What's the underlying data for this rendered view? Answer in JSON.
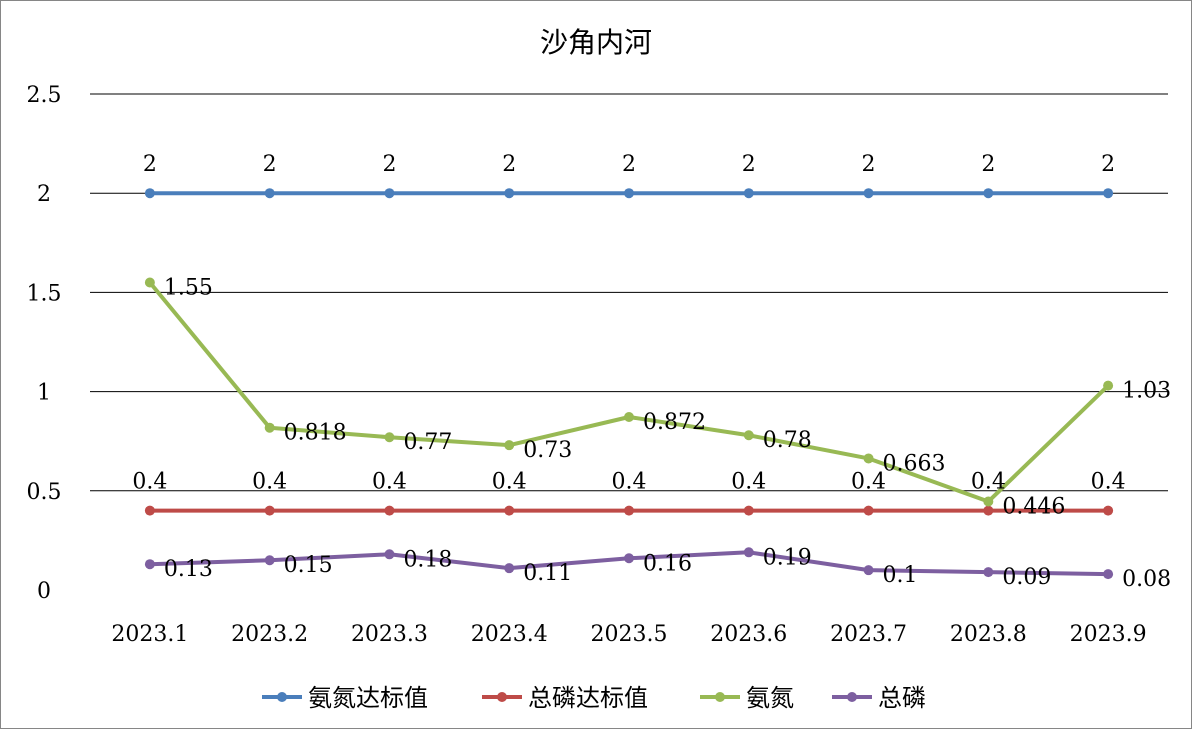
{
  "chart_data": {
    "type": "line",
    "title": "沙角内河",
    "categories": [
      "2023.1",
      "2023.2",
      "2023.3",
      "2023.4",
      "2023.5",
      "2023.6",
      "2023.7",
      "2023.8",
      "2023.9"
    ],
    "y_ticks": [
      "0",
      "0.5",
      "1",
      "1.5",
      "2",
      "2.5"
    ],
    "ylim": [
      0,
      2.5
    ],
    "grid": true,
    "legend_position": "bottom",
    "series": [
      {
        "name": "氨氮达标值",
        "color": "#4a7ebb",
        "values": [
          2,
          2,
          2,
          2,
          2,
          2,
          2,
          2,
          2
        ],
        "labels": [
          "2",
          "2",
          "2",
          "2",
          "2",
          "2",
          "2",
          "2",
          "2"
        ],
        "label_position": "above"
      },
      {
        "name": "总磷达标值",
        "color": "#be4b48",
        "values": [
          0.4,
          0.4,
          0.4,
          0.4,
          0.4,
          0.4,
          0.4,
          0.4,
          0.4
        ],
        "labels": [
          "0.4",
          "0.4",
          "0.4",
          "0.4",
          "0.4",
          "0.4",
          "0.4",
          "0.4",
          "0.4"
        ],
        "label_position": "above"
      },
      {
        "name": "氨氮",
        "color": "#98b954",
        "values": [
          1.55,
          0.818,
          0.77,
          0.73,
          0.872,
          0.78,
          0.663,
          0.446,
          1.03
        ],
        "labels": [
          "1.55",
          "0.818",
          "0.77",
          "0.73",
          "0.872",
          "0.78",
          "0.663",
          "0.446",
          "1.03"
        ],
        "label_position": "right"
      },
      {
        "name": "总磷",
        "color": "#7d5fa0",
        "values": [
          0.13,
          0.15,
          0.18,
          0.11,
          0.16,
          0.19,
          0.1,
          0.09,
          0.08
        ],
        "labels": [
          "0.13",
          "0.15",
          "0.18",
          "0.11",
          "0.16",
          "0.19",
          "0.1",
          "0.09",
          "0.08"
        ],
        "label_position": "right"
      }
    ]
  }
}
